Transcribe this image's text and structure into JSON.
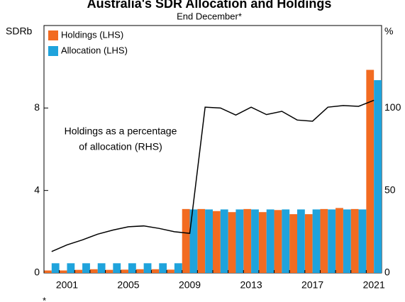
{
  "chart_data": {
    "type": "bar",
    "title": "Australia's SDR Allocation and Holdings",
    "subtitle": "End December*",
    "y_label": "SDRb",
    "y2_label": "%",
    "footnote": "*",
    "annotation": [
      "Holdings as a percentage",
      "of allocation (RHS)"
    ],
    "categories": [
      null,
      "2001",
      null,
      null,
      null,
      "2005",
      null,
      null,
      null,
      "2009",
      null,
      null,
      null,
      "2013",
      null,
      null,
      null,
      "2017",
      null,
      null,
      null,
      "2021"
    ],
    "series": [
      {
        "name": "Holdings (LHS)",
        "color": "#f26b21",
        "type": "bar",
        "values": [
          0.12,
          0.12,
          0.15,
          0.18,
          0.15,
          0.16,
          0.18,
          0.18,
          0.16,
          3.1,
          3.1,
          3.0,
          2.95,
          3.1,
          2.95,
          3.05,
          2.85,
          2.85,
          3.1,
          3.15,
          3.1,
          9.85
        ]
      },
      {
        "name": "Allocation (LHS)",
        "color": "#1fa3dc",
        "type": "bar",
        "values": [
          0.47,
          0.47,
          0.47,
          0.47,
          0.47,
          0.47,
          0.47,
          0.47,
          0.47,
          3.08,
          3.08,
          3.08,
          3.08,
          3.08,
          3.08,
          3.08,
          3.08,
          3.08,
          3.08,
          3.08,
          3.08,
          9.35
        ]
      },
      {
        "color": "#000000",
        "type": "line",
        "axis": "y2",
        "values": [
          13,
          17,
          20,
          23.5,
          26,
          28,
          28.5,
          27,
          25,
          24,
          100.5,
          100,
          95.7,
          100.5,
          96,
          98,
          92.7,
          92,
          100.5,
          101.5,
          101,
          104.7
        ]
      }
    ],
    "ylim": [
      0,
      12
    ],
    "yticks": [
      0,
      4,
      8
    ],
    "y2lim": [
      0,
      150
    ],
    "y2ticks": [
      0,
      50,
      100
    ],
    "legend": "upper left",
    "grid": false
  }
}
